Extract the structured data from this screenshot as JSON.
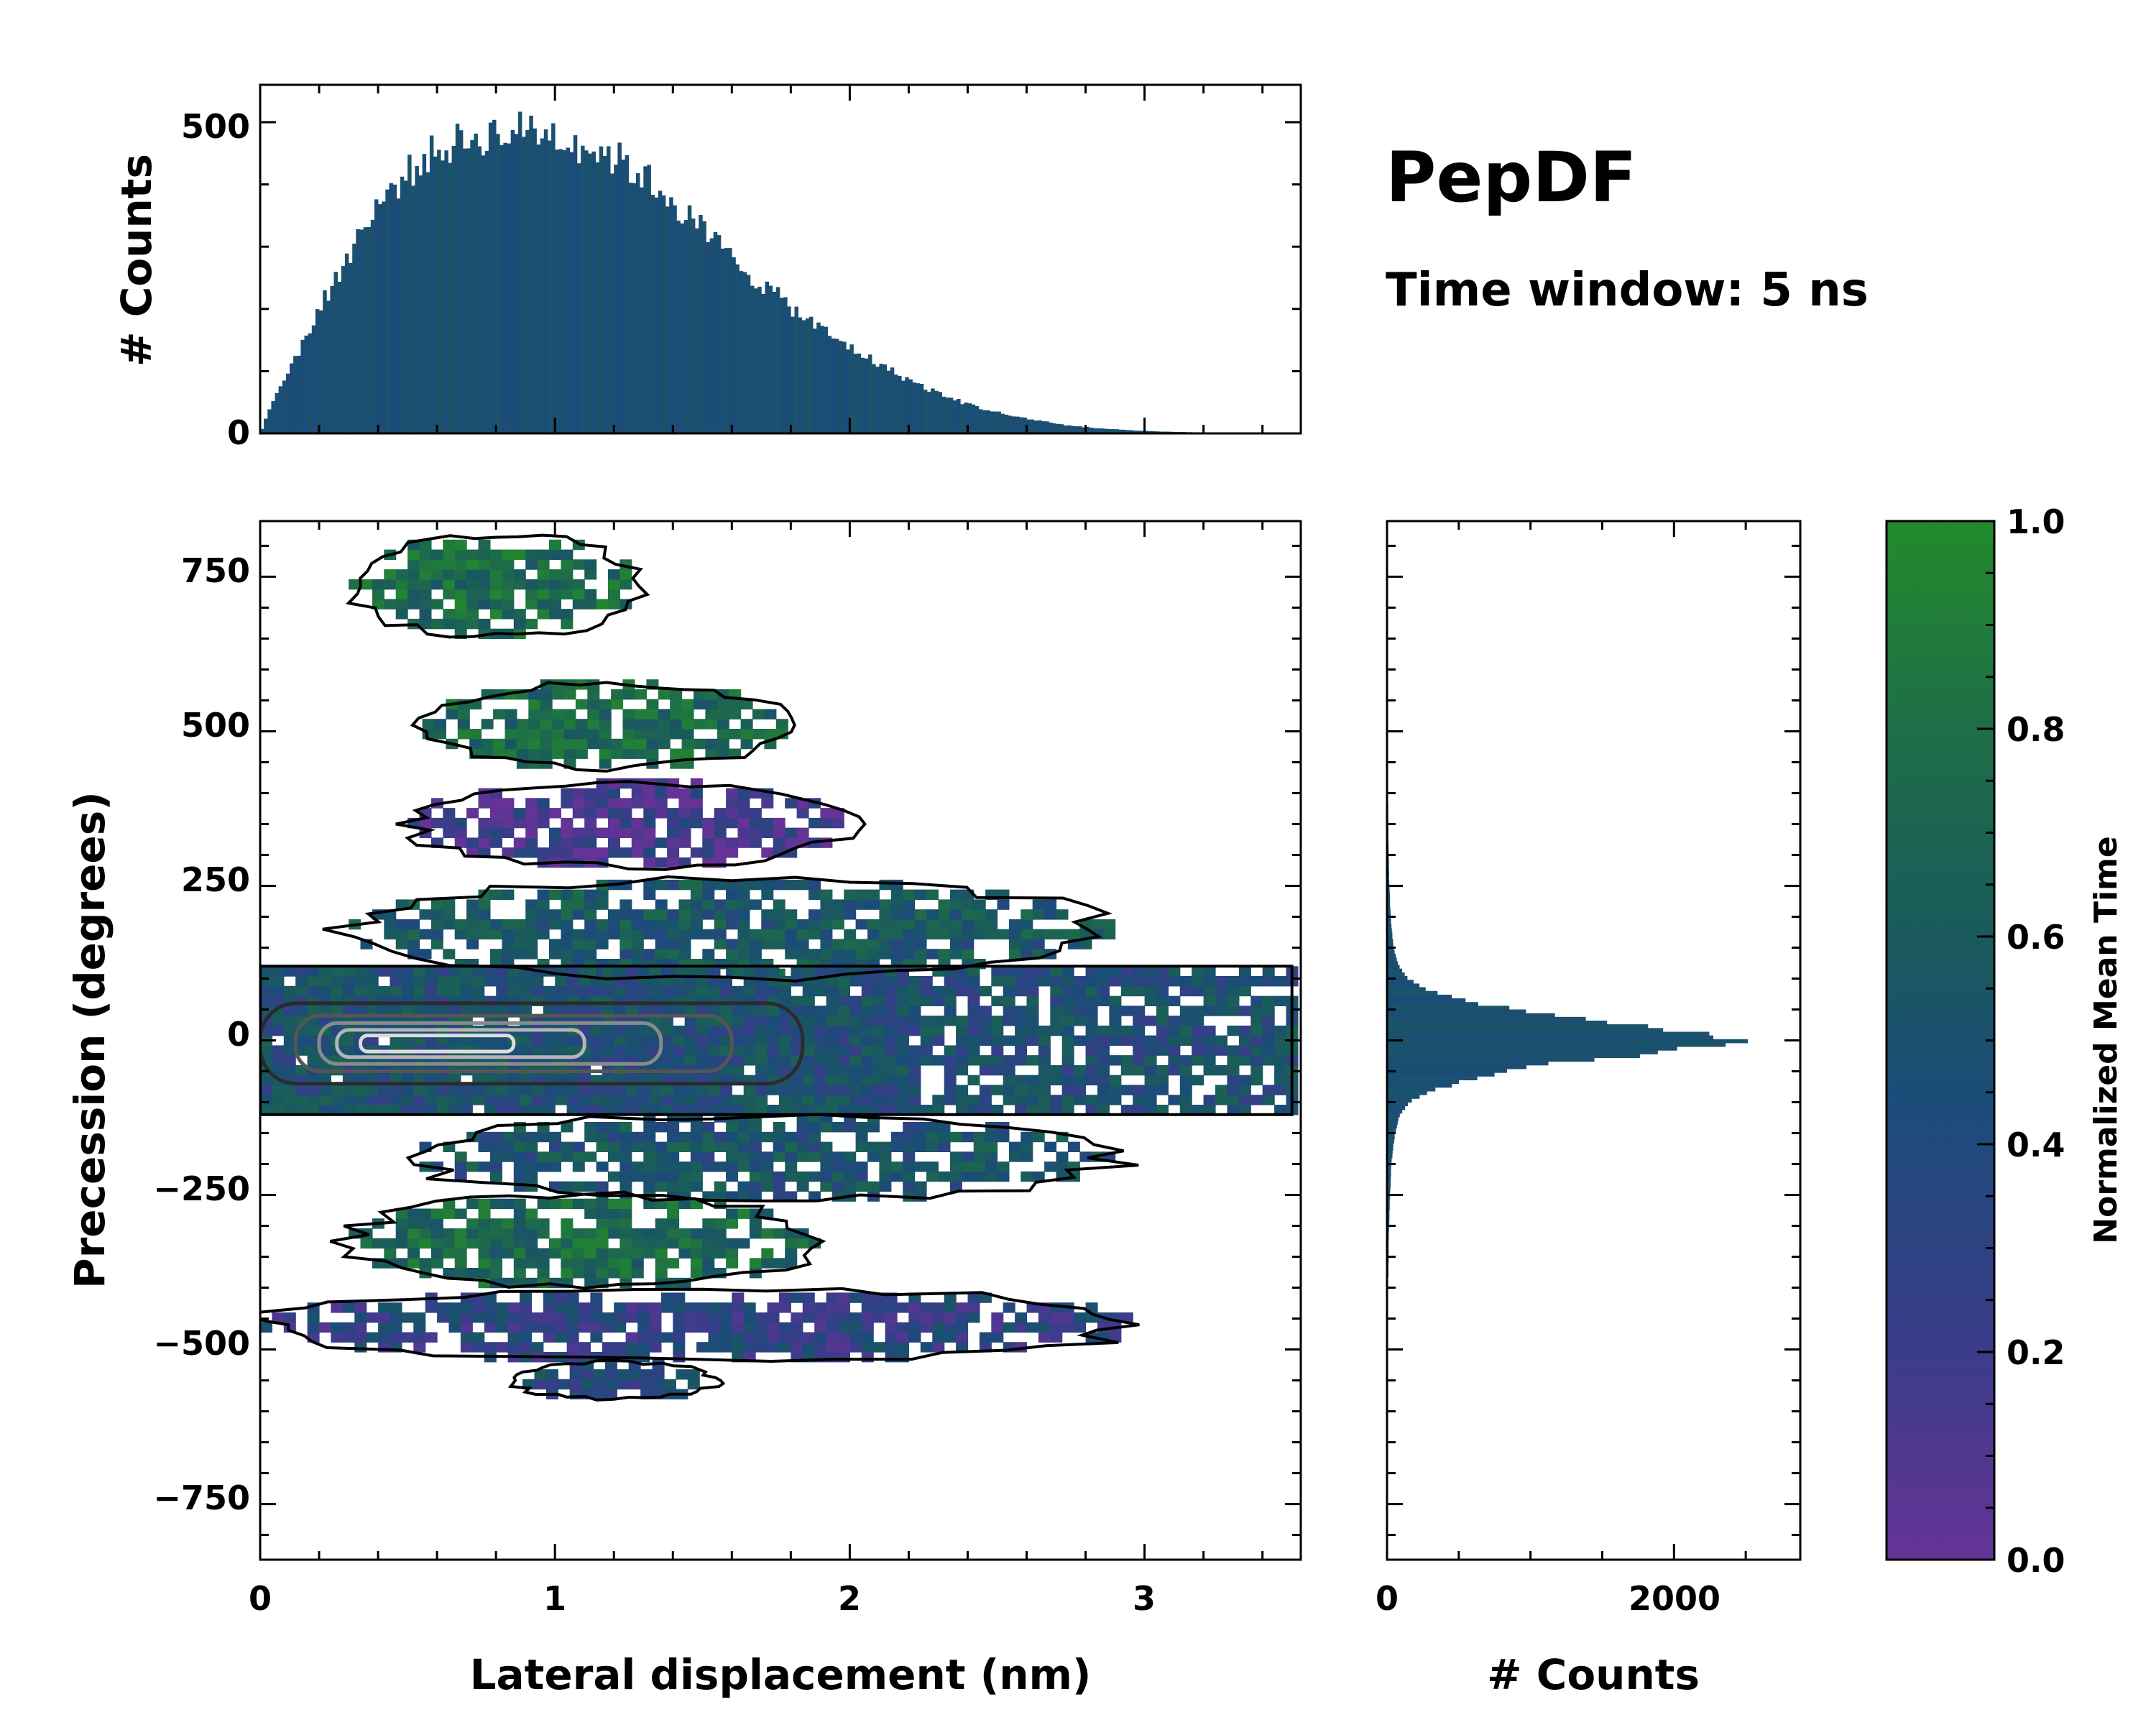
{
  "chart_data": {
    "type": "heatmap",
    "title": "PepDF",
    "subtitle": "Time window: 5 ns",
    "xlabel": "Lateral displacement (nm)",
    "ylabel": "Precession (degrees)",
    "xlim": [
      0,
      3.53
    ],
    "ylim": [
      -840,
      840
    ],
    "xticks": [
      "0",
      "1",
      "2",
      "3"
    ],
    "yticks": [
      "750",
      "500",
      "250",
      "0",
      "−250",
      "−500",
      "−750"
    ],
    "colorbar": {
      "label": "Normalized Mean Time",
      "ticks": [
        "1.0",
        "0.8",
        "0.6",
        "0.4",
        "0.2",
        "0.0"
      ],
      "range": [
        0,
        1
      ],
      "colors": [
        "#653396",
        "#3b3c8a",
        "#1b4c78",
        "#1a5a5c",
        "#1e6e47",
        "#238a2c"
      ]
    },
    "top_histogram": {
      "ylabel": "# Counts",
      "yticks": [
        "500",
        "0"
      ],
      "ylim": [
        0,
        560
      ],
      "bin_centers_nm": [
        0.05,
        0.15,
        0.25,
        0.35,
        0.45,
        0.55,
        0.65,
        0.75,
        0.85,
        0.95,
        1.05,
        1.15,
        1.25,
        1.35,
        1.45,
        1.55,
        1.65,
        1.75,
        1.85,
        1.95,
        2.05,
        2.15,
        2.25,
        2.35,
        2.45,
        2.55,
        2.65,
        2.75,
        2.85,
        2.95,
        3.05,
        3.15,
        3.25,
        3.35
      ],
      "counts": [
        60,
        150,
        245,
        330,
        395,
        440,
        465,
        478,
        485,
        488,
        470,
        455,
        430,
        395,
        350,
        305,
        260,
        222,
        185,
        152,
        125,
        98,
        75,
        55,
        40,
        28,
        20,
        12,
        8,
        5,
        3,
        2,
        1,
        1
      ],
      "color": "#1b4a78"
    },
    "right_histogram": {
      "xlabel": "# Counts",
      "xticks": [
        "0",
        "2000"
      ],
      "xlim": [
        0,
        2880
      ],
      "bin_centers_deg": [
        -380,
        -320,
        -260,
        -200,
        -150,
        -120,
        -100,
        -80,
        -60,
        -40,
        -20,
        0,
        20,
        40,
        60,
        80,
        100,
        120,
        150,
        200,
        260,
        320,
        380
      ],
      "counts": [
        10,
        12,
        20,
        30,
        55,
        90,
        150,
        330,
        620,
        1050,
        1900,
        2550,
        1850,
        1200,
        620,
        300,
        150,
        80,
        45,
        25,
        15,
        10,
        8
      ],
      "color": "#1b4a78"
    },
    "clusters": [
      {
        "name": "upper-lobe-750",
        "x_range": [
          0.3,
          1.3
        ],
        "y_range": [
          650,
          820
        ],
        "mean_time": 0.75
      },
      {
        "name": "upper-lobe-500",
        "x_range": [
          0.55,
          1.8
        ],
        "y_range": [
          440,
          580
        ],
        "mean_time": 0.72
      },
      {
        "name": "upper-lobe-350",
        "x_range": [
          0.5,
          2.0
        ],
        "y_range": [
          280,
          420
        ],
        "mean_time": 0.15
      },
      {
        "name": "upper-wing-150",
        "x_range": [
          0.3,
          2.9
        ],
        "y_range": [
          100,
          260
        ],
        "mean_time": 0.55
      },
      {
        "name": "core-band",
        "x_range": [
          0.0,
          3.5
        ],
        "y_range": [
          -120,
          120
        ],
        "mean_time": 0.45
      },
      {
        "name": "lower-wing-180",
        "x_range": [
          0.5,
          2.9
        ],
        "y_range": [
          -260,
          -120
        ],
        "mean_time": 0.5
      },
      {
        "name": "lower-lobe-350",
        "x_range": [
          0.3,
          1.9
        ],
        "y_range": [
          -400,
          -250
        ],
        "mean_time": 0.72
      },
      {
        "name": "lower-lobe-470",
        "x_range": [
          0.0,
          3.0
        ],
        "y_range": [
          -520,
          -400
        ],
        "mean_time": 0.3
      },
      {
        "name": "lower-lobe-550",
        "x_range": [
          0.85,
          1.55
        ],
        "y_range": [
          -580,
          -520
        ],
        "mean_time": 0.4
      }
    ],
    "density_contours": [
      {
        "level": 1,
        "cx": 0.92,
        "cy": -5,
        "rx": 0.92,
        "ry": 65,
        "color": "#2b2b2b"
      },
      {
        "level": 2,
        "cx": 0.86,
        "cy": -5,
        "rx": 0.74,
        "ry": 45,
        "color": "#555555"
      },
      {
        "level": 3,
        "cx": 0.78,
        "cy": -5,
        "rx": 0.58,
        "ry": 33,
        "color": "#8a8a8a"
      },
      {
        "level": 4,
        "cx": 0.68,
        "cy": -5,
        "rx": 0.42,
        "ry": 22,
        "color": "#b5b5b5"
      },
      {
        "level": 5,
        "cx": 0.6,
        "cy": -5,
        "rx": 0.26,
        "ry": 13,
        "color": "#dcdcdc"
      }
    ]
  }
}
